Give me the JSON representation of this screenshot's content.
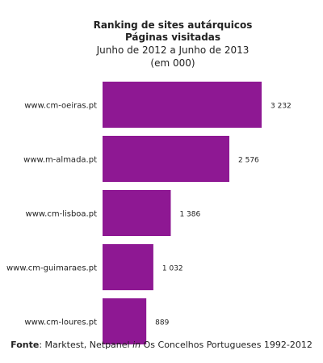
{
  "chart_data": {
    "type": "bar",
    "orientation": "horizontal",
    "title": "Ranking de sites autárquicos",
    "subtitle": "Páginas visitadas",
    "period": "Junho de 2012 a Junho de 2013",
    "unit": "(em 000)",
    "categories": [
      "www.cm-oeiras.pt",
      "www.m-almada.pt",
      "www.cm-lisboa.pt",
      "www.cm-guimaraes.pt",
      "www.cm-loures.pt"
    ],
    "values": [
      3232,
      2576,
      1386,
      1032,
      889
    ],
    "value_labels": [
      "3 232",
      "2 576",
      "1 386",
      "1 032",
      "889"
    ],
    "xlim": [
      0,
      3232
    ],
    "grid": false,
    "legend": "none",
    "bar_color": "#8e1893"
  },
  "source": {
    "label": "Fonte",
    "sep": ": Marktest, Netpanel ",
    "in": "in",
    "rest": " Os Concelhos  Portugueses 1992-2012"
  }
}
